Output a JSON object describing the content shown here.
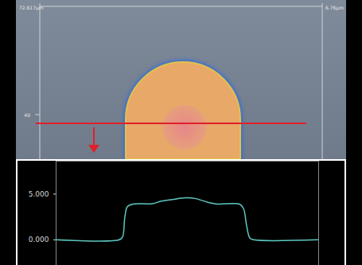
{
  "micrograph": {
    "scale_top_left": "72.617µm",
    "ruler_mark": "40",
    "scale_top_right": "6.76µm"
  },
  "chart_data": {
    "type": "line",
    "x": [
      0,
      24.1,
      25.3,
      26.2,
      27.1,
      29.2,
      36.7,
      39.8,
      44.3,
      49.4,
      53.3,
      57.8,
      61.4,
      69.9,
      71.4,
      72.6,
      73.8,
      75.3,
      100
    ],
    "values": [
      0,
      0,
      0.3,
      2.5,
      3.6,
      3.9,
      3.95,
      4.2,
      4.4,
      4.6,
      4.5,
      4.1,
      3.9,
      3.9,
      3.4,
      1.5,
      0.2,
      0,
      0
    ],
    "color": "#5cc8c0",
    "xlim": [
      0,
      100
    ],
    "ylim": [
      -2.8,
      8.6
    ],
    "yticks": [
      {
        "value": 0,
        "label": "0.000"
      },
      {
        "value": 5,
        "label": "5.000"
      }
    ],
    "tick_labels": "y"
  }
}
